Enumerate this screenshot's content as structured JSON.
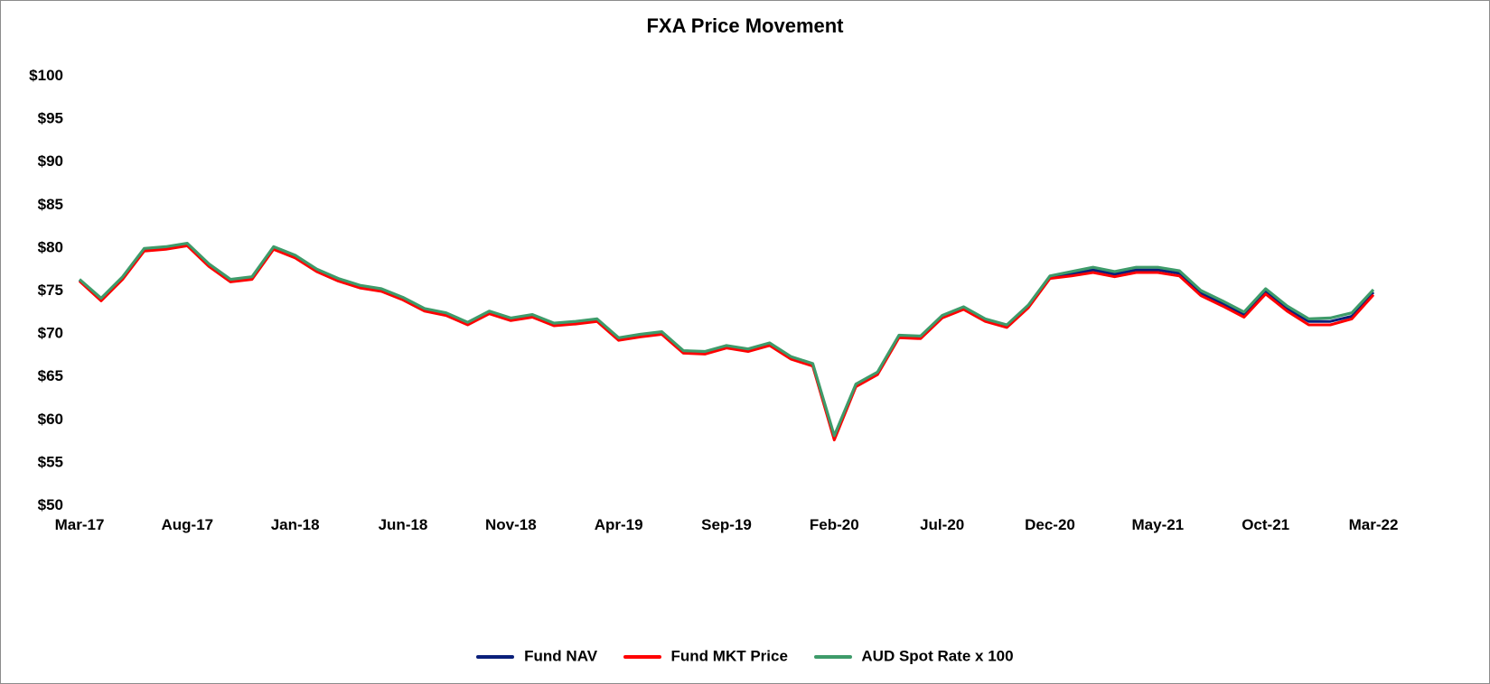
{
  "chart_data": {
    "type": "line",
    "title": "FXA Price Movement",
    "xlabel": "",
    "ylabel": "",
    "ylim": [
      50,
      100
    ],
    "y_ticks": [
      "$50",
      "$55",
      "$60",
      "$65",
      "$70",
      "$75",
      "$80",
      "$85",
      "$90",
      "$95",
      "$100"
    ],
    "x_ticks": [
      "Mar-17",
      "Aug-17",
      "Jan-18",
      "Jun-18",
      "Nov-18",
      "Apr-19",
      "Sep-19",
      "Feb-20",
      "Jul-20",
      "Dec-20",
      "May-21",
      "Oct-21",
      "Mar-22"
    ],
    "grid": false,
    "legend_position": "bottom",
    "x_dates": [
      "2017-03",
      "2017-05",
      "2017-06",
      "2017-07",
      "2017-08",
      "2017-09",
      "2017-10",
      "2017-11",
      "2017-12",
      "2018-01",
      "2018-02",
      "2018-03",
      "2018-04",
      "2018-05",
      "2018-06",
      "2018-07",
      "2018-08",
      "2018-09",
      "2018-10",
      "2018-11",
      "2018-12",
      "2019-01",
      "2019-02",
      "2019-03",
      "2019-04",
      "2019-05",
      "2019-06",
      "2019-07",
      "2019-08",
      "2019-09",
      "2019-10",
      "2019-11",
      "2019-12",
      "2020-01",
      "2020-02",
      "2020-03a",
      "2020-03b",
      "2020-04",
      "2020-05",
      "2020-06",
      "2020-07",
      "2020-08",
      "2020-09",
      "2020-10",
      "2020-11",
      "2020-12",
      "2021-01",
      "2021-02",
      "2021-03",
      "2021-04",
      "2021-05",
      "2021-06",
      "2021-07",
      "2021-08",
      "2021-09",
      "2021-10",
      "2021-11",
      "2021-12",
      "2022-01",
      "2022-02",
      "2022-03"
    ],
    "series": [
      {
        "name": "Fund NAV",
        "color": "#0a1f7a",
        "values": [
          76.1,
          73.8,
          76.3,
          79.6,
          79.8,
          80.2,
          77.8,
          76.0,
          76.3,
          79.8,
          78.8,
          77.2,
          76.1,
          75.3,
          74.9,
          73.9,
          72.6,
          72.1,
          71.0,
          72.3,
          71.5,
          71.9,
          70.9,
          71.1,
          71.4,
          69.2,
          69.6,
          69.9,
          67.7,
          67.6,
          68.3,
          67.9,
          68.6,
          67.0,
          66.2,
          57.7,
          63.8,
          65.2,
          69.5,
          69.4,
          71.8,
          72.8,
          71.4,
          70.7,
          73.0,
          76.4,
          76.8,
          77.3,
          76.8,
          77.3,
          77.3,
          76.9,
          74.6,
          73.4,
          72.1,
          74.8,
          72.8,
          71.3,
          71.3,
          71.9,
          74.7
        ]
      },
      {
        "name": "Fund MKT Price",
        "color": "#ff0000",
        "values": [
          76.0,
          73.7,
          76.2,
          79.5,
          79.7,
          80.1,
          77.7,
          75.9,
          76.2,
          79.7,
          78.7,
          77.1,
          76.0,
          75.2,
          74.8,
          73.8,
          72.5,
          72.0,
          70.9,
          72.2,
          71.4,
          71.8,
          70.8,
          71.0,
          71.3,
          69.1,
          69.5,
          69.8,
          67.6,
          67.5,
          68.2,
          67.8,
          68.5,
          66.9,
          66.1,
          57.5,
          63.7,
          65.1,
          69.4,
          69.3,
          71.7,
          72.7,
          71.3,
          70.6,
          72.9,
          76.3,
          76.6,
          77.0,
          76.5,
          77.0,
          77.0,
          76.6,
          74.3,
          73.1,
          71.8,
          74.5,
          72.5,
          70.9,
          70.9,
          71.6,
          74.4
        ]
      },
      {
        "name": "AUD Spot Rate x 100",
        "color": "#3e9b6a",
        "values": [
          76.2,
          74.0,
          76.5,
          79.8,
          80.0,
          80.4,
          78.0,
          76.2,
          76.5,
          80.0,
          79.0,
          77.4,
          76.3,
          75.5,
          75.1,
          74.1,
          72.8,
          72.3,
          71.2,
          72.5,
          71.7,
          72.1,
          71.1,
          71.3,
          71.6,
          69.4,
          69.8,
          70.1,
          67.9,
          67.8,
          68.5,
          68.1,
          68.8,
          67.2,
          66.4,
          58.0,
          64.0,
          65.4,
          69.7,
          69.6,
          72.0,
          73.0,
          71.6,
          70.9,
          73.2,
          76.6,
          77.1,
          77.6,
          77.1,
          77.6,
          77.6,
          77.2,
          74.9,
          73.7,
          72.4,
          75.1,
          73.1,
          71.6,
          71.7,
          72.3,
          75.0
        ]
      }
    ]
  }
}
